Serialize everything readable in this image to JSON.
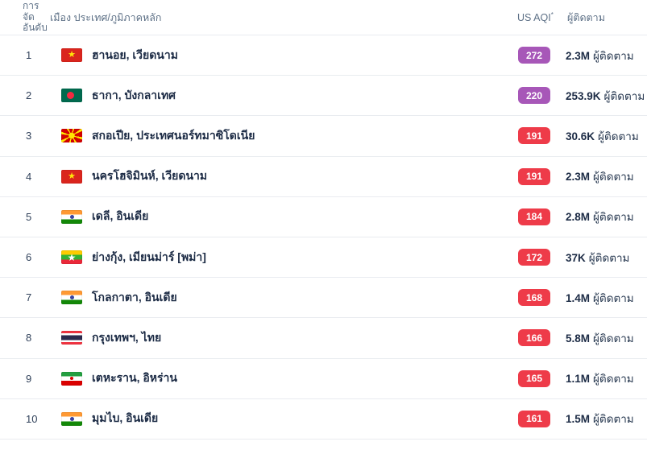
{
  "colors": {
    "very-unhealthy": "#a757b8",
    "unhealthy": "#ee3b49",
    "text_dark": "#1c2b45",
    "header_text": "#5d7086",
    "divider": "#e9ecf0"
  },
  "header": {
    "rank_label_lines": [
      "การ",
      "จัด",
      "อันดับ"
    ],
    "city_label": "เมือง ประเทศ/ภูมิภาคหลัก",
    "aqi_label": "US AQI",
    "aqi_superscript": "*",
    "followers_label": "ผู้ติดตาม"
  },
  "rows": [
    {
      "rank": "1",
      "flag": "vietnam",
      "city": "ฮานอย, เวียดนาม",
      "aqi": "272",
      "aqi_level": "very-unhealthy",
      "followers_count": "2.3M",
      "followers_word": "ผู้ติดตาม"
    },
    {
      "rank": "2",
      "flag": "bangladesh",
      "city": "ธากา, บังกลาเทศ",
      "aqi": "220",
      "aqi_level": "very-unhealthy",
      "followers_count": "253.9K",
      "followers_word": "ผู้ติดตาม"
    },
    {
      "rank": "3",
      "flag": "north-macedonia",
      "city": "สกอเปีย, ประเทศนอร์ทมาซิโดเนีย",
      "aqi": "191",
      "aqi_level": "unhealthy",
      "followers_count": "30.6K",
      "followers_word": "ผู้ติดตาม"
    },
    {
      "rank": "4",
      "flag": "vietnam",
      "city": "นครโฮจิมินห์, เวียดนาม",
      "aqi": "191",
      "aqi_level": "unhealthy",
      "followers_count": "2.3M",
      "followers_word": "ผู้ติดตาม"
    },
    {
      "rank": "5",
      "flag": "india",
      "city": "เดลี, อินเดีย",
      "aqi": "184",
      "aqi_level": "unhealthy",
      "followers_count": "2.8M",
      "followers_word": "ผู้ติดตาม"
    },
    {
      "rank": "6",
      "flag": "myanmar",
      "city": "ย่างกุ้ง, เมียนม่าร์ [พม่า]",
      "aqi": "172",
      "aqi_level": "unhealthy",
      "followers_count": "37K",
      "followers_word": "ผู้ติดตาม"
    },
    {
      "rank": "7",
      "flag": "india",
      "city": "โกลกาตา, อินเดีย",
      "aqi": "168",
      "aqi_level": "unhealthy",
      "followers_count": "1.4M",
      "followers_word": "ผู้ติดตาม"
    },
    {
      "rank": "8",
      "flag": "thailand",
      "city": "กรุงเทพฯ, ไทย",
      "aqi": "166",
      "aqi_level": "unhealthy",
      "followers_count": "5.8M",
      "followers_word": "ผู้ติดตาม"
    },
    {
      "rank": "9",
      "flag": "iran",
      "city": "เตหะราน, อิหร่าน",
      "aqi": "165",
      "aqi_level": "unhealthy",
      "followers_count": "1.1M",
      "followers_word": "ผู้ติดตาม"
    },
    {
      "rank": "10",
      "flag": "india",
      "city": "มุมไบ, อินเดีย",
      "aqi": "161",
      "aqi_level": "unhealthy",
      "followers_count": "1.5M",
      "followers_word": "ผู้ติดตาม"
    }
  ]
}
